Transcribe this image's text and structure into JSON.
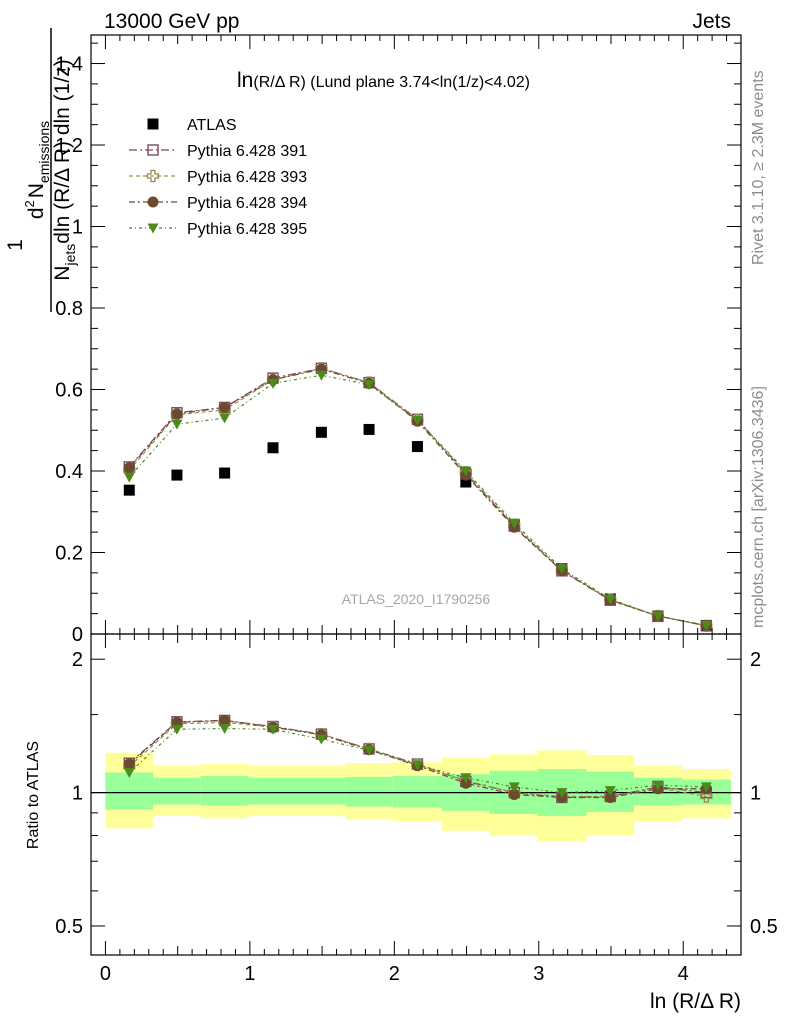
{
  "header": {
    "left": "13000 GeV pp",
    "right": "Jets"
  },
  "side_labels": {
    "rivet": "Rivet 3.1.10, ≥ 2.3M events",
    "mcplots": "mcplots.cern.ch [arXiv:1306.3436]"
  },
  "watermark": "ATLAS_2020_I1790256",
  "colors": {
    "data": "#000000",
    "p391": "#7a4b5a",
    "p393": "#9a8a55",
    "p394": "#6b4a30",
    "p395": "#4c8a1c",
    "band_inner": "#99ff99",
    "band_outer": "#ffff99"
  },
  "chart_data": [
    {
      "type": "scatter",
      "panel": "main",
      "title": "ln(R/Δ R) (Lund plane 3.74<ln(1/z)<4.02)",
      "title_parts": {
        "pre": "ln",
        "small": "(R/Δ R)",
        "post": " (Lund plane 3.74<ln(1/z)<4.02)"
      },
      "ylabel_parts": {
        "one": "1",
        "num_d": "d",
        "num_sup": "2",
        "num_N": "N",
        "num_sub": "emissions",
        "den_N": "N",
        "den_sub": "jets",
        "den_rest": "dln (R/Δ R) dln (1/z)"
      },
      "ylim": [
        0,
        1.47
      ],
      "yticks": [
        0,
        0.2,
        0.4,
        0.6,
        0.8,
        1,
        1.2,
        1.4
      ],
      "ytick_labels": [
        "0",
        "0.2",
        "0.4",
        "0.6",
        "0.8",
        "1",
        "1.2",
        "1.4"
      ],
      "xlim": [
        -0.1,
        4.4
      ],
      "x": [
        0.165,
        0.495,
        0.825,
        1.16,
        1.495,
        1.825,
        2.16,
        2.495,
        2.83,
        3.16,
        3.495,
        3.825,
        4.16
      ],
      "legend_position": "top-left",
      "series": [
        {
          "name": "ATLAS",
          "marker": "square-filled",
          "color_key": "data",
          "values": [
            0.353,
            0.39,
            0.395,
            0.457,
            0.495,
            0.502,
            0.46,
            0.373,
            0.268,
            0.16,
            0.086,
            0.043,
            0.021
          ]
        },
        {
          "name": "Pythia 6.428 391",
          "marker": "square-open",
          "color_key": "p391",
          "values": [
            0.41,
            0.543,
            0.556,
            0.628,
            0.652,
            0.617,
            0.527,
            0.393,
            0.265,
            0.155,
            0.083,
            0.044,
            0.02
          ]
        },
        {
          "name": "Pythia 6.428 393",
          "marker": "cross-open",
          "color_key": "p393",
          "values": [
            0.402,
            0.538,
            0.55,
            0.624,
            0.652,
            0.617,
            0.525,
            0.397,
            0.267,
            0.157,
            0.084,
            0.044,
            0.02
          ]
        },
        {
          "name": "Pythia 6.428 394",
          "marker": "circle-filled",
          "color_key": "p394",
          "values": [
            0.408,
            0.54,
            0.556,
            0.624,
            0.65,
            0.615,
            0.522,
            0.39,
            0.262,
            0.155,
            0.083,
            0.044,
            0.021
          ]
        },
        {
          "name": "Pythia 6.428 395",
          "marker": "triangle-down-filled",
          "color_key": "p395",
          "values": [
            0.385,
            0.515,
            0.53,
            0.615,
            0.635,
            0.612,
            0.525,
            0.4,
            0.272,
            0.16,
            0.086,
            0.044,
            0.021
          ]
        }
      ]
    },
    {
      "type": "scatter",
      "panel": "ratio",
      "ylabel": "Ratio to ATLAS",
      "ylim": [
        0.43,
        2.28
      ],
      "yticks": [
        0.5,
        1,
        2
      ],
      "ytick_labels": [
        "0.5",
        "1",
        "2"
      ],
      "xlim": [
        -0.1,
        4.4
      ],
      "xticks": [
        0,
        1,
        2,
        3,
        4
      ],
      "xtick_labels": [
        "0",
        "1",
        "2",
        "3",
        "4"
      ],
      "xlabel": "ln (R/Δ R)",
      "x": [
        0.165,
        0.495,
        0.825,
        1.16,
        1.495,
        1.825,
        2.16,
        2.495,
        2.83,
        3.16,
        3.495,
        3.825,
        4.16
      ],
      "bins": [
        [
          0,
          0.33
        ],
        [
          0.33,
          0.66
        ],
        [
          0.66,
          0.99
        ],
        [
          0.99,
          1.33
        ],
        [
          1.33,
          1.66
        ],
        [
          1.66,
          1.99
        ],
        [
          1.99,
          2.33
        ],
        [
          2.33,
          2.66
        ],
        [
          2.66,
          2.99
        ],
        [
          2.99,
          3.33
        ],
        [
          3.33,
          3.66
        ],
        [
          3.66,
          3.99
        ],
        [
          3.99,
          4.33
        ]
      ],
      "band_inner": [
        [
          0.915,
          1.11
        ],
        [
          0.94,
          1.08
        ],
        [
          0.935,
          1.09
        ],
        [
          0.94,
          1.08
        ],
        [
          0.94,
          1.08
        ],
        [
          0.93,
          1.085
        ],
        [
          0.925,
          1.09
        ],
        [
          0.91,
          1.1
        ],
        [
          0.895,
          1.12
        ],
        [
          0.885,
          1.13
        ],
        [
          0.905,
          1.115
        ],
        [
          0.935,
          1.08
        ],
        [
          0.94,
          1.07
        ]
      ],
      "band_outer": [
        [
          0.83,
          1.23
        ],
        [
          0.885,
          1.15
        ],
        [
          0.875,
          1.16
        ],
        [
          0.885,
          1.15
        ],
        [
          0.885,
          1.15
        ],
        [
          0.87,
          1.165
        ],
        [
          0.86,
          1.17
        ],
        [
          0.82,
          1.2
        ],
        [
          0.8,
          1.22
        ],
        [
          0.775,
          1.245
        ],
        [
          0.8,
          1.215
        ],
        [
          0.86,
          1.15
        ],
        [
          0.875,
          1.13
        ]
      ],
      "series": [
        {
          "name": "Pythia 6.428 391",
          "color_key": "p391",
          "values": [
            1.165,
            1.445,
            1.455,
            1.41,
            1.355,
            1.255,
            1.16,
            1.06,
            1.0,
            0.975,
            0.98,
            1.03,
            1.0
          ]
        },
        {
          "name": "Pythia 6.428 393",
          "color_key": "p393",
          "values": [
            1.145,
            1.43,
            1.44,
            1.405,
            1.355,
            1.255,
            1.155,
            1.065,
            1.0,
            0.98,
            0.98,
            1.025,
            0.98
          ]
        },
        {
          "name": "Pythia 6.428 394",
          "color_key": "p394",
          "values": [
            1.16,
            1.44,
            1.455,
            1.405,
            1.35,
            1.25,
            1.15,
            1.05,
            0.99,
            0.975,
            0.975,
            1.02,
            1.02
          ]
        },
        {
          "name": "Pythia 6.428 395",
          "color_key": "p395",
          "values": [
            1.11,
            1.39,
            1.395,
            1.39,
            1.32,
            1.245,
            1.155,
            1.08,
            1.03,
            1.0,
            1.01,
            1.04,
            1.03
          ]
        }
      ]
    }
  ]
}
